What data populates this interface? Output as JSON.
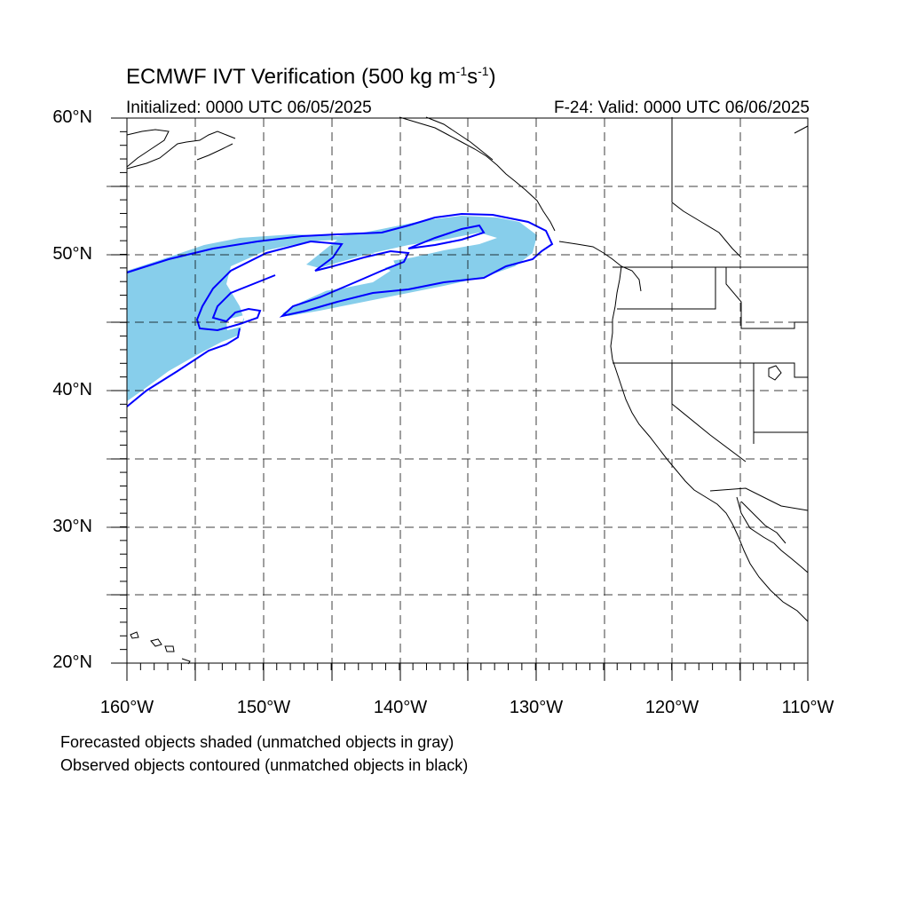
{
  "title": {
    "main": "ECMWF IVT Verification (500 kg m",
    "sup1": "-1",
    "mid": "s",
    "sup2": "-1",
    "close": ")"
  },
  "subtitle_left": "Initialized: 0000 UTC 06/05/2025",
  "subtitle_right": "F-24: Valid: 0000 UTC 06/06/2025",
  "lat_labels": [
    "60°N",
    "50°N",
    "40°N",
    "30°N",
    "20°N"
  ],
  "lon_labels": [
    "160°W",
    "150°W",
    "140°W",
    "130°W",
    "120°W",
    "110°W"
  ],
  "footnote_1": "Forecasted objects shaded (unmatched objects in gray)",
  "footnote_2": "Observed objects contoured (unmatched objects in black)",
  "colors": {
    "forecast_fill": "#87ceeb",
    "observed_contour": "#0000ff",
    "grid": "#000000"
  },
  "map_extent": {
    "lon": [
      -160,
      -110
    ],
    "lat": [
      20,
      60
    ]
  }
}
